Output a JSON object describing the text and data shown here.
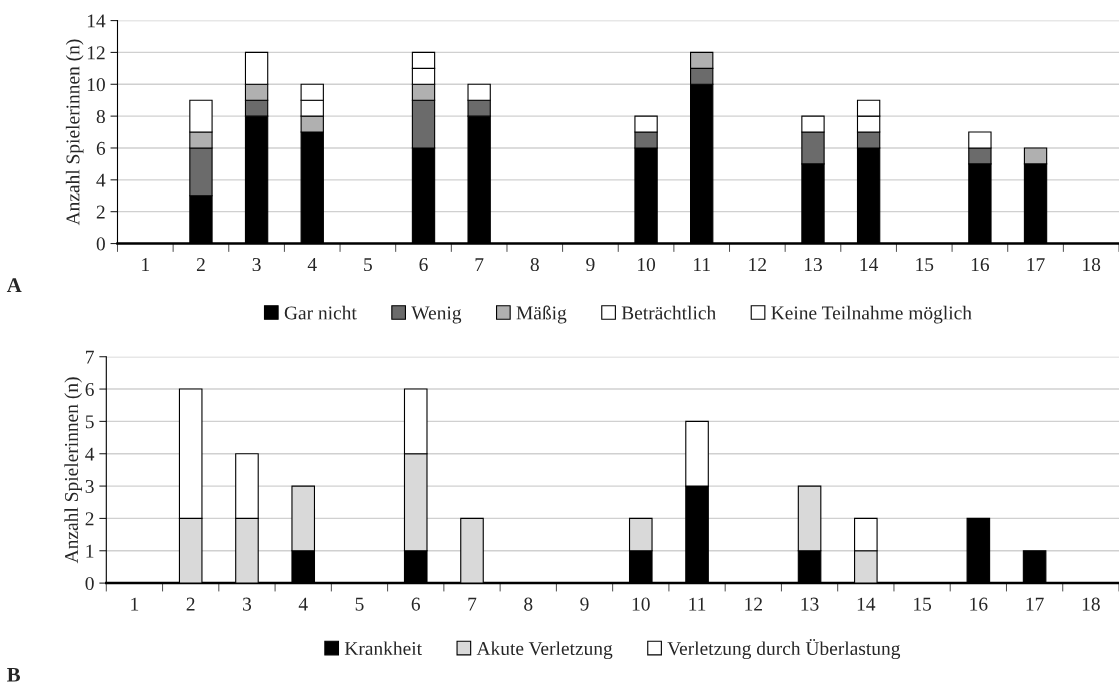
{
  "chart_data": [
    {
      "type": "bar",
      "stacked": true,
      "ylabel": "Anzahl Spielerinnen (n)",
      "categories": [
        "1",
        "2",
        "3",
        "4",
        "5",
        "6",
        "7",
        "8",
        "9",
        "10",
        "11",
        "12",
        "13",
        "14",
        "15",
        "16",
        "17",
        "18"
      ],
      "ylim": [
        0,
        14
      ],
      "yticks": [
        0,
        2,
        4,
        6,
        8,
        10,
        12,
        14
      ],
      "grid": "y",
      "legend": "bottom",
      "annotations": [
        "A"
      ],
      "series": [
        {
          "name": "Gar nicht",
          "color": "#000000",
          "values": [
            null,
            3,
            8,
            7,
            null,
            6,
            8,
            null,
            null,
            6,
            10,
            null,
            5,
            6,
            null,
            5,
            5,
            null
          ]
        },
        {
          "name": "Wenig",
          "color": "#6b6b6b",
          "values": [
            null,
            3,
            1,
            null,
            null,
            3,
            1,
            null,
            null,
            1,
            1,
            null,
            2,
            1,
            null,
            1,
            null,
            null
          ]
        },
        {
          "name": "Mäßig",
          "color": "#b0b0b0",
          "values": [
            null,
            1,
            1,
            1,
            null,
            1,
            null,
            null,
            null,
            null,
            1,
            null,
            null,
            null,
            null,
            null,
            1,
            null
          ]
        },
        {
          "name": "Beträchtlich",
          "color": "#ffffff",
          "values": [
            null,
            null,
            null,
            1,
            null,
            1,
            null,
            null,
            null,
            null,
            null,
            null,
            null,
            1,
            null,
            null,
            null,
            null
          ]
        },
        {
          "name": "Keine Teilnahme möglich",
          "color": "#ffffff",
          "values": [
            null,
            2,
            2,
            1,
            null,
            1,
            1,
            null,
            null,
            1,
            null,
            null,
            1,
            1,
            null,
            1,
            null,
            null
          ]
        }
      ]
    },
    {
      "type": "bar",
      "stacked": true,
      "ylabel": "Anzahl Spielerinnen (n)",
      "categories": [
        "1",
        "2",
        "3",
        "4",
        "5",
        "6",
        "7",
        "8",
        "9",
        "10",
        "11",
        "12",
        "13",
        "14",
        "15",
        "16",
        "17",
        "18"
      ],
      "ylim": [
        0,
        7
      ],
      "yticks": [
        0,
        1,
        2,
        3,
        4,
        5,
        6,
        7
      ],
      "grid": "y",
      "legend": "bottom",
      "annotations": [
        "B"
      ],
      "series": [
        {
          "name": "Krankheit",
          "color": "#000000",
          "values": [
            null,
            null,
            null,
            1,
            null,
            1,
            null,
            null,
            null,
            1,
            3,
            null,
            1,
            null,
            null,
            2,
            1,
            null
          ]
        },
        {
          "name": "Akute Verletzung",
          "color": "#d9d9d9",
          "values": [
            null,
            2,
            2,
            2,
            null,
            3,
            2,
            null,
            null,
            1,
            null,
            null,
            2,
            1,
            null,
            null,
            null,
            null
          ]
        },
        {
          "name": "Verletzung durch Überlastung",
          "color": "#ffffff",
          "values": [
            null,
            4,
            2,
            null,
            null,
            2,
            null,
            null,
            null,
            null,
            2,
            null,
            null,
            1,
            null,
            null,
            null,
            null
          ]
        }
      ]
    }
  ]
}
